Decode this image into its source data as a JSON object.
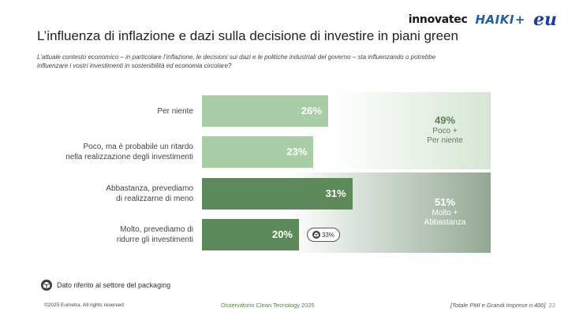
{
  "logos": {
    "innovatec": "innovatec",
    "haiki": "HAIKI",
    "haiki_plus": "+",
    "eu": "eu"
  },
  "title": "L’influenza di inflazione e dazi sulla decisione di investire in piani green",
  "subtitle": "L’attuale contesto economico – in particolare l’inflazione, le decisioni sui dazi e le politiche industriali del governo – sta influenzando o potrebbe influenzare i vostri investimenti in sostenibilità ed economia circolare?",
  "chart_data": {
    "type": "bar",
    "orientation": "horizontal",
    "categories": [
      [
        "Per niente"
      ],
      [
        "Poco, ma è probabile un ritardo",
        "nella realizzazione degli investimenti"
      ],
      [
        "Abbastanza, prevediamo",
        "di realizzarne di meno"
      ],
      [
        "Molto, prevediamo di",
        "ridurre gli investimenti"
      ]
    ],
    "values": [
      26,
      23,
      31,
      20
    ],
    "value_labels": [
      "26%",
      "23%",
      "31%",
      "20%"
    ],
    "bar_colors": [
      "#a9cda6",
      "#a9cda6",
      "#5e8a5b",
      "#5e8a5b"
    ],
    "xlim": [
      0,
      100
    ],
    "groups": [
      {
        "pct": "49%",
        "label_lines": [
          "Poco +",
          "Per niente"
        ],
        "members": [
          0,
          1
        ]
      },
      {
        "pct": "51%",
        "label_lines": [
          "Molto +",
          "Abbastanza"
        ],
        "members": [
          2,
          3
        ]
      }
    ],
    "packaging_badge": {
      "category_index": 3,
      "value_label": "33%",
      "icon": "package-icon"
    }
  },
  "legend_note": {
    "icon": "package-icon",
    "text": "Dato riferito al settore del packaging"
  },
  "footer": {
    "copyright": "©2025 Eumetra. All rights reserved",
    "center": "Osservatorio Clean Tecnology 2025",
    "right": "[Totale PMI e Grandi Imprese n.400]",
    "page": "22"
  }
}
